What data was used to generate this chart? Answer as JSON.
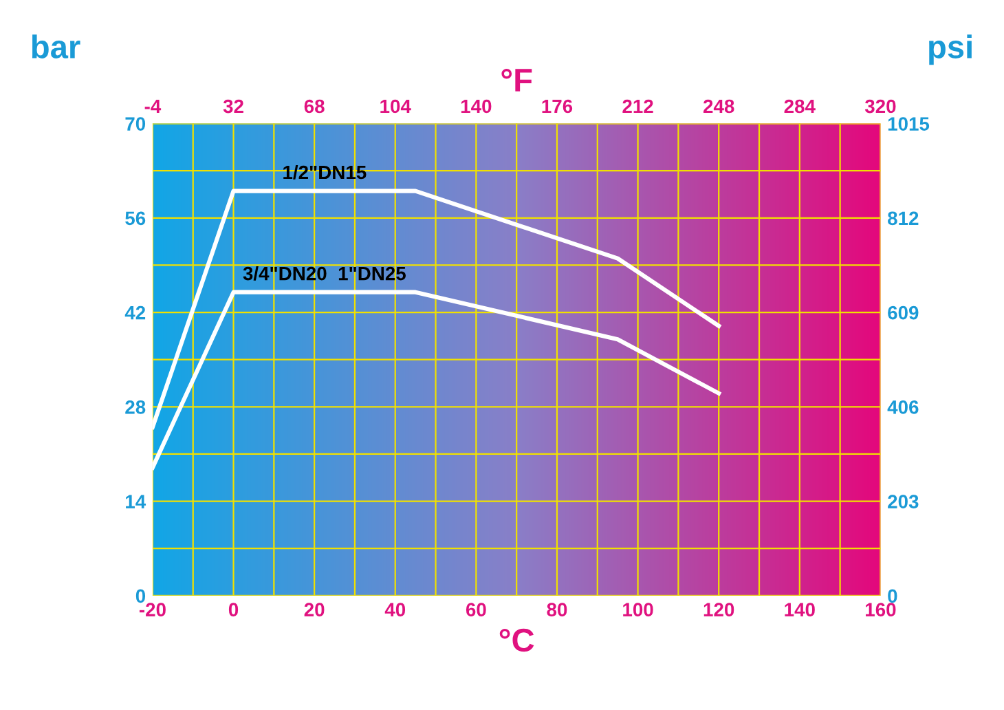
{
  "chart_data": {
    "type": "line",
    "xlabel": "°C",
    "ylabel": "bar",
    "y2label": "psi",
    "x2label": "°F",
    "series": [
      {
        "name": "1/2\"DN15",
        "color": "#ffffff",
        "x": [
          -20,
          0,
          45,
          95,
          120
        ],
        "values": [
          25,
          60,
          60,
          50,
          40
        ]
      },
      {
        "name": "3/4\"DN20  1\"DN25",
        "color": "#ffffff",
        "x": [
          -20,
          0,
          45,
          95,
          120
        ],
        "values": [
          19,
          45,
          45,
          38,
          30
        ]
      }
    ],
    "xlim": [
      -20,
      160
    ],
    "xticks": [
      -20,
      {
        "value": -10,
        "label": null
      },
      0,
      {
        "value": 10,
        "label": null
      },
      20,
      {
        "value": 30,
        "label": null
      },
      40,
      {
        "value": 50,
        "label": null
      },
      60,
      {
        "value": 70,
        "label": null
      },
      80,
      {
        "value": 90,
        "label": null
      },
      100,
      {
        "value": 110,
        "label": null
      },
      120,
      {
        "value": 130,
        "label": null
      },
      140,
      {
        "value": 150,
        "label": null
      },
      160
    ],
    "ylim": [
      0,
      70
    ],
    "yticks": [
      0,
      {
        "value": 7,
        "label": null
      },
      14,
      {
        "value": 21,
        "label": null
      },
      28,
      {
        "value": 35,
        "label": null
      },
      42,
      {
        "value": 49,
        "label": null
      },
      56,
      {
        "value": 63,
        "label": null
      },
      70
    ],
    "y2lim": [
      0,
      1015
    ],
    "y2ticks": [
      0,
      203,
      406,
      609,
      812,
      1015
    ],
    "x2lim": [
      -4,
      320
    ],
    "x2ticks": [
      -4,
      32,
      68,
      104,
      140,
      176,
      212,
      248,
      284,
      320
    ],
    "grid": true,
    "legend": false,
    "marker": "none",
    "line_style": "solid"
  }
}
